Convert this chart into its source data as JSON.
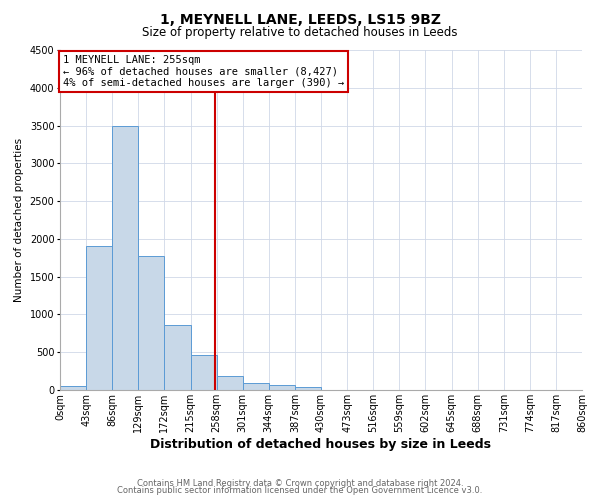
{
  "title": "1, MEYNELL LANE, LEEDS, LS15 9BZ",
  "subtitle": "Size of property relative to detached houses in Leeds",
  "xlabel": "Distribution of detached houses by size in Leeds",
  "ylabel": "Number of detached properties",
  "bin_labels": [
    "0sqm",
    "43sqm",
    "86sqm",
    "129sqm",
    "172sqm",
    "215sqm",
    "258sqm",
    "301sqm",
    "344sqm",
    "387sqm",
    "430sqm",
    "473sqm",
    "516sqm",
    "559sqm",
    "602sqm",
    "645sqm",
    "688sqm",
    "731sqm",
    "774sqm",
    "817sqm",
    "860sqm"
  ],
  "bar_values": [
    50,
    1900,
    3500,
    1780,
    860,
    460,
    185,
    95,
    60,
    35,
    0,
    0,
    0,
    0,
    0,
    0,
    0,
    0,
    0,
    0
  ],
  "bar_color": "#c8d8e8",
  "bar_edge_color": "#5b9bd5",
  "vline_color": "#cc0000",
  "ylim": [
    0,
    4500
  ],
  "yticks": [
    0,
    500,
    1000,
    1500,
    2000,
    2500,
    3000,
    3500,
    4000,
    4500
  ],
  "annotation_title": "1 MEYNELL LANE: 255sqm",
  "annotation_line1": "← 96% of detached houses are smaller (8,427)",
  "annotation_line2": "4% of semi-detached houses are larger (390) →",
  "annotation_box_color": "#cc0000",
  "footer_line1": "Contains HM Land Registry data © Crown copyright and database right 2024.",
  "footer_line2": "Contains public sector information licensed under the Open Government Licence v3.0.",
  "background_color": "#ffffff",
  "grid_color": "#d0d8e8",
  "title_fontsize": 10,
  "subtitle_fontsize": 8.5,
  "xlabel_fontsize": 9,
  "ylabel_fontsize": 7.5,
  "tick_fontsize": 7,
  "ann_fontsize": 7.5,
  "footer_fontsize": 6
}
